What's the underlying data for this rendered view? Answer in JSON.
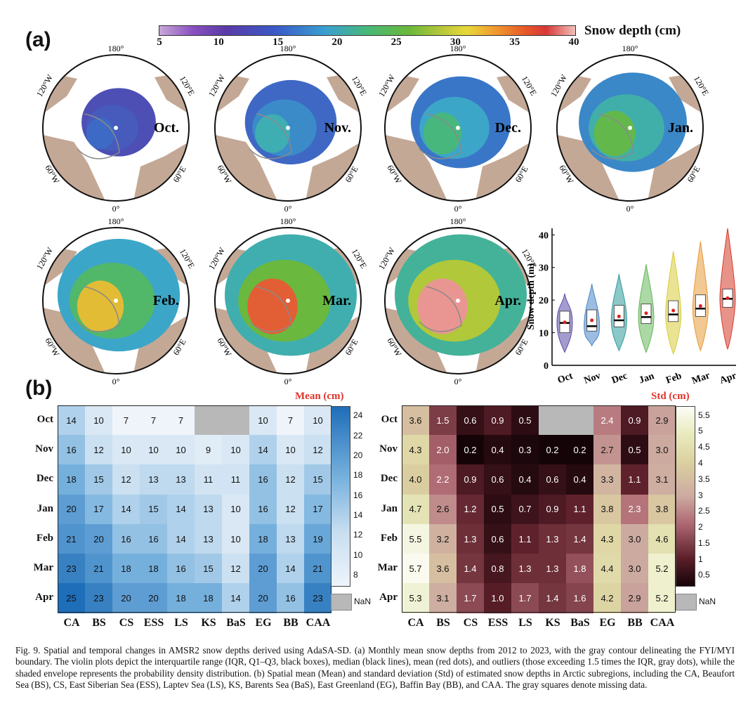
{
  "figure": {
    "panel_a_label": "(a)",
    "panel_b_label": "(b)",
    "colorbar": {
      "title": "Snow depth (cm)",
      "ticks": [
        "5",
        "10",
        "15",
        "20",
        "25",
        "30",
        "35",
        "40"
      ]
    },
    "map_labels": {
      "top": "180°",
      "bottom": "0°",
      "upper_left": "120°W",
      "upper_right": "120°E",
      "lower_left": "60°W",
      "lower_right": "60°E"
    },
    "maps": [
      {
        "month": "Oct.",
        "level": 0.15
      },
      {
        "month": "Nov.",
        "level": 0.32
      },
      {
        "month": "Dec.",
        "level": 0.4
      },
      {
        "month": "Jan.",
        "level": 0.48
      },
      {
        "month": "Feb.",
        "level": 0.62
      },
      {
        "month": "Mar.",
        "level": 0.72
      },
      {
        "month": "Apr.",
        "level": 0.8
      }
    ],
    "violin": {
      "ylabel": "Snow depth (m)",
      "yticks": [
        "0",
        "10",
        "20",
        "30",
        "40"
      ],
      "months": [
        "Oct",
        "Nov",
        "Dec",
        "Jan",
        "Feb",
        "Mar",
        "Apr"
      ],
      "colors": [
        "#5a4aa8",
        "#4a86c8",
        "#2f9a9a",
        "#66b85a",
        "#d8cc3a",
        "#e89a3a",
        "#d63a2a"
      ]
    },
    "caption": "Fig. 9.  Spatial and temporal changes in AMSR2 snow depths derived using AdaSA-SD. (a) Monthly mean snow depths from 2012 to 2023, with the gray contour delineating the FYI/MYI boundary. The violin plots depict the interquartile range (IQR, Q1–Q3, black boxes), median (black lines), mean (red dots), and outliers (those exceeding 1.5 times the IQR, gray dots), while the shaded envelope represents the probability density distribution. (b) Spatial mean (Mean) and standard deviation (Std) of estimated snow depths in Arctic subregions, including the CA, Beaufort Sea (BS), CS, East Siberian Sea (ESS), Laptev Sea (LS), KS, Barents Sea (BaS), East Greenland (EG), Baffin Bay (BB), and CAA. The gray squares denote missing data."
  },
  "chart_data": [
    {
      "type": "violin",
      "title": "",
      "xlabel": "",
      "ylabel": "Snow depth (m)",
      "ylim": [
        0,
        42
      ],
      "categories": [
        "Oct",
        "Nov",
        "Dec",
        "Jan",
        "Feb",
        "Mar",
        "Apr"
      ],
      "mean": [
        13.2,
        13.8,
        15.0,
        16.0,
        16.8,
        18.2,
        20.6
      ],
      "median": [
        13.0,
        12.0,
        13.8,
        14.8,
        15.6,
        17.4,
        20.4
      ],
      "q1": [
        10.0,
        10.5,
        11.8,
        12.8,
        13.4,
        15.0,
        17.8
      ],
      "q3": [
        16.6,
        17.0,
        18.4,
        18.8,
        19.8,
        21.6,
        23.4
      ],
      "min": [
        4.0,
        6.0,
        4.5,
        4.0,
        3.5,
        4.5,
        5.0
      ],
      "max": [
        22.0,
        25.0,
        28.0,
        31.0,
        35.0,
        38.0,
        42.0
      ]
    },
    {
      "type": "heatmap",
      "title": "Mean (cm)",
      "rows": [
        "Oct",
        "Nov",
        "Dec",
        "Jan",
        "Feb",
        "Mar",
        "Apr"
      ],
      "columns": [
        "CA",
        "BS",
        "CS",
        "ESS",
        "LS",
        "KS",
        "BaS",
        "EG",
        "BB",
        "CAA"
      ],
      "values": [
        [
          14,
          10,
          7,
          7,
          7,
          null,
          null,
          10,
          7,
          10
        ],
        [
          16,
          12,
          10,
          10,
          10,
          9,
          10,
          14,
          10,
          12
        ],
        [
          18,
          15,
          12,
          13,
          13,
          11,
          11,
          16,
          12,
          15
        ],
        [
          20,
          17,
          14,
          15,
          14,
          13,
          10,
          16,
          12,
          17
        ],
        [
          21,
          20,
          16,
          16,
          14,
          13,
          10,
          18,
          13,
          19
        ],
        [
          23,
          21,
          18,
          18,
          16,
          15,
          12,
          20,
          14,
          21
        ],
        [
          25,
          23,
          20,
          20,
          18,
          18,
          14,
          20,
          16,
          23
        ]
      ],
      "colorbar_ticks": [
        "8",
        "10",
        "12",
        "14",
        "16",
        "18",
        "20",
        "22",
        "24"
      ],
      "range": [
        7,
        25
      ],
      "nan_label": "NaN"
    },
    {
      "type": "heatmap",
      "title": "Std (cm)",
      "rows": [
        "Oct",
        "Nov",
        "Dec",
        "Jan",
        "Feb",
        "Mar",
        "Apr"
      ],
      "columns": [
        "CA",
        "BS",
        "CS",
        "ESS",
        "LS",
        "KS",
        "BaS",
        "EG",
        "BB",
        "CAA"
      ],
      "values": [
        [
          "3.6",
          "1.5",
          "0.6",
          "0.9",
          "0.5",
          null,
          null,
          "2.4",
          "0.9",
          "2.9"
        ],
        [
          "4.3",
          "2.0",
          "0.2",
          "0.4",
          "0.3",
          "0.2",
          "0.2",
          "2.7",
          "0.5",
          "3.0"
        ],
        [
          "4.0",
          "2.2",
          "0.9",
          "0.6",
          "0.4",
          "0.6",
          "0.4",
          "3.3",
          "1.1",
          "3.1"
        ],
        [
          "4.7",
          "2.6",
          "1.2",
          "0.5",
          "0.7",
          "0.9",
          "1.1",
          "3.8",
          "2.3",
          "3.8"
        ],
        [
          "5.5",
          "3.2",
          "1.3",
          "0.6",
          "1.1",
          "1.3",
          "1.4",
          "4.3",
          "3.0",
          "4.6"
        ],
        [
          "5.7",
          "3.6",
          "1.4",
          "0.8",
          "1.3",
          "1.3",
          "1.8",
          "4.4",
          "3.0",
          "5.2"
        ],
        [
          "5.3",
          "3.1",
          "1.7",
          "1.0",
          "1.7",
          "1.4",
          "1.6",
          "4.2",
          "2.9",
          "5.2"
        ]
      ],
      "colorbar_ticks": [
        "0.5",
        "1",
        "1.5",
        "2",
        "2.5",
        "3",
        "3.5",
        "4",
        "4.5",
        "5",
        "5.5"
      ],
      "range": [
        0.2,
        5.8
      ],
      "nan_label": "NaN"
    }
  ]
}
